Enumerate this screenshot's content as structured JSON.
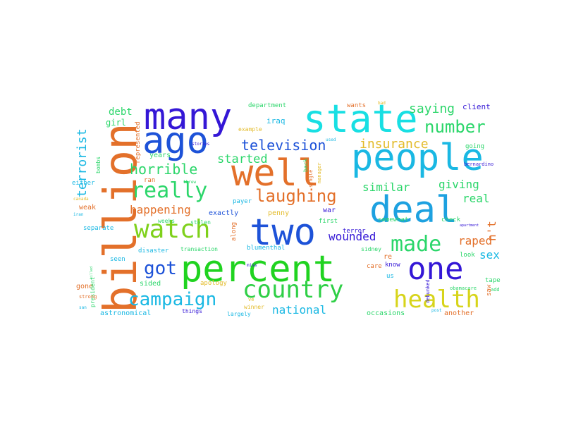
{
  "wordcloud": {
    "words": [
      {
        "id": "w01",
        "text": "billion",
        "color": "#e3702a"
      },
      {
        "id": "w02",
        "text": "many",
        "color": "#3417d6"
      },
      {
        "id": "w03",
        "text": "ago",
        "color": "#1d52d8"
      },
      {
        "id": "w04",
        "text": "state",
        "color": "#18dfe3"
      },
      {
        "id": "w05",
        "text": "well",
        "color": "#e3702a"
      },
      {
        "id": "w06",
        "text": "people",
        "color": "#1ab8e3"
      },
      {
        "id": "w07",
        "text": "two",
        "color": "#1d52d8"
      },
      {
        "id": "w08",
        "text": "deal",
        "color": "#1da1e0"
      },
      {
        "id": "w09",
        "text": "percent",
        "color": "#20d320"
      },
      {
        "id": "w10",
        "text": "one",
        "color": "#3417d6"
      },
      {
        "id": "w11",
        "text": "watch",
        "color": "#7fd11b"
      },
      {
        "id": "w12",
        "text": "country",
        "color": "#2fcf46"
      },
      {
        "id": "w13",
        "text": "health",
        "color": "#d7d41a"
      },
      {
        "id": "w14",
        "text": "campaign",
        "color": "#1ab8e3"
      },
      {
        "id": "w15",
        "text": "made",
        "color": "#2bd66a"
      },
      {
        "id": "w16",
        "text": "really",
        "color": "#2bd66a"
      },
      {
        "id": "w17",
        "text": "got",
        "color": "#1d52d8"
      },
      {
        "id": "w18",
        "text": "laughing",
        "color": "#e3702a"
      },
      {
        "id": "w19",
        "text": "number",
        "color": "#2bd66a"
      },
      {
        "id": "w20",
        "text": "horrible",
        "color": "#2bd66a"
      },
      {
        "id": "w21",
        "text": "television",
        "color": "#1d52d8"
      },
      {
        "id": "w22",
        "text": "started",
        "color": "#2bd66a"
      },
      {
        "id": "w23",
        "text": "terrorist",
        "color": "#1ab8e3"
      },
      {
        "id": "w24",
        "text": "insurance",
        "color": "#e3bb2a"
      },
      {
        "id": "w25",
        "text": "saying",
        "color": "#2bd66a"
      },
      {
        "id": "w26",
        "text": "happening",
        "color": "#e3702a"
      },
      {
        "id": "w27",
        "text": "similar",
        "color": "#2bd66a"
      },
      {
        "id": "w28",
        "text": "giving",
        "color": "#2bd66a"
      },
      {
        "id": "w29",
        "text": "real",
        "color": "#2bd66a"
      },
      {
        "id": "w30",
        "text": "wounded",
        "color": "#3417d6"
      },
      {
        "id": "w31",
        "text": "raped",
        "color": "#e3702a"
      },
      {
        "id": "w32",
        "text": "sex",
        "color": "#1ab8e3"
      },
      {
        "id": "w33",
        "text": "national",
        "color": "#1ab8e3"
      },
      {
        "id": "w34",
        "text": "n't",
        "color": "#e3702a"
      },
      {
        "id": "w35",
        "text": "debt",
        "color": "#2bd66a"
      },
      {
        "id": "w36",
        "text": "girl",
        "color": "#2bd66a"
      },
      {
        "id": "w37",
        "text": "years",
        "color": "#2bd66a"
      },
      {
        "id": "w38",
        "text": "weak",
        "color": "#e3702a"
      },
      {
        "id": "w39",
        "text": "exactly",
        "color": "#1d52d8"
      },
      {
        "id": "w40",
        "text": "penny",
        "color": "#e3bb2a"
      },
      {
        "id": "w41",
        "text": "iraq",
        "color": "#1ab8e3"
      },
      {
        "id": "w42",
        "text": "client",
        "color": "#3417d6"
      },
      {
        "id": "w43",
        "text": "department",
        "color": "#2bd66a"
      },
      {
        "id": "w44",
        "text": "wants",
        "color": "#e3702a"
      },
      {
        "id": "w45",
        "text": "bad",
        "color": "#e3bb2a"
      },
      {
        "id": "w46",
        "text": "example",
        "color": "#e3bb2a"
      },
      {
        "id": "w47",
        "text": "represented",
        "color": "#e3702a"
      },
      {
        "id": "w48",
        "text": "bombs",
        "color": "#2bd66a"
      },
      {
        "id": "w49",
        "text": "either",
        "color": "#1ab8e3"
      },
      {
        "id": "w50",
        "text": "ran",
        "color": "#e3702a"
      },
      {
        "id": "w51",
        "text": "payer",
        "color": "#1ab8e3"
      },
      {
        "id": "w52",
        "text": "somewhat",
        "color": "#2bd66a"
      },
      {
        "id": "w53",
        "text": "war",
        "color": "#3417d6"
      },
      {
        "id": "w54",
        "text": "first",
        "color": "#2bd66a"
      },
      {
        "id": "w55",
        "text": "terror",
        "color": "#3417d6"
      },
      {
        "id": "w56",
        "text": "check",
        "color": "#2bd66a"
      },
      {
        "id": "w57",
        "text": "going",
        "color": "#2bd66a"
      },
      {
        "id": "w58",
        "text": "bernardino",
        "color": "#3417d6"
      },
      {
        "id": "w59",
        "text": "weeks",
        "color": "#2bd66a"
      },
      {
        "id": "w60",
        "text": "stolen",
        "color": "#2bd66a"
      },
      {
        "id": "w61",
        "text": "separate",
        "color": "#1ab8e3"
      },
      {
        "id": "w62",
        "text": "disaster",
        "color": "#1ab8e3"
      },
      {
        "id": "w63",
        "text": "transaction",
        "color": "#2bd66a"
      },
      {
        "id": "w64",
        "text": "blumenthal",
        "color": "#1ab8e3"
      },
      {
        "id": "w65",
        "text": "sidney",
        "color": "#2bd66a"
      },
      {
        "id": "w66",
        "text": "seen",
        "color": "#1ab8e3"
      },
      {
        "id": "w67",
        "text": "care",
        "color": "#e3702a"
      },
      {
        "id": "w68",
        "text": "know",
        "color": "#3417d6"
      },
      {
        "id": "w69",
        "text": "look",
        "color": "#2bd66a"
      },
      {
        "id": "w70",
        "text": "us",
        "color": "#1ab8e3"
      },
      {
        "id": "w71",
        "text": "re",
        "color": "#e3702a"
      },
      {
        "id": "w72",
        "text": "sided",
        "color": "#2bd66a"
      },
      {
        "id": "w73",
        "text": "apology",
        "color": "#e3bb2a"
      },
      {
        "id": "w74",
        "text": "gone",
        "color": "#e3702a"
      },
      {
        "id": "w75",
        "text": "tape",
        "color": "#2bd66a"
      },
      {
        "id": "w76",
        "text": "add",
        "color": "#2bd66a"
      },
      {
        "id": "w77",
        "text": "saw",
        "color": "#e3702a"
      },
      {
        "id": "w78",
        "text": "obamacare",
        "color": "#2bd66a"
      },
      {
        "id": "w79",
        "text": "things",
        "color": "#3417d6"
      },
      {
        "id": "w80",
        "text": "winner",
        "color": "#e3bb2a"
      },
      {
        "id": "w81",
        "text": "largely",
        "color": "#1ab8e3"
      },
      {
        "id": "w82",
        "text": "astronomical",
        "color": "#1ab8e3"
      },
      {
        "id": "w83",
        "text": "occasions",
        "color": "#2bd66a"
      },
      {
        "id": "w84",
        "text": "another",
        "color": "#e3702a"
      },
      {
        "id": "w85",
        "text": "president",
        "color": "#2bd66a"
      },
      {
        "id": "w86",
        "text": "strong",
        "color": "#e3702a"
      },
      {
        "id": "w87",
        "text": "san",
        "color": "#1ab8e3"
      },
      {
        "id": "w88",
        "text": "canada",
        "color": "#e3bb2a"
      },
      {
        "id": "w89",
        "text": "iran",
        "color": "#1ab8e3"
      },
      {
        "id": "w90",
        "text": "killed",
        "color": "#2bd66a"
      },
      {
        "id": "w91",
        "text": "along",
        "color": "#e3702a"
      },
      {
        "id": "w92",
        "text": "miss",
        "color": "#3417d6"
      },
      {
        "id": "w93",
        "text": "single",
        "color": "#e3702a"
      },
      {
        "id": "w94",
        "text": "manager",
        "color": "#e3bb2a"
      },
      {
        "id": "w95",
        "text": "back",
        "color": "#2bd66a"
      },
      {
        "id": "w96",
        "text": "debunked",
        "color": "#3417d6"
      },
      {
        "id": "w97",
        "text": "apartment",
        "color": "#3417d6"
      },
      {
        "id": "w98",
        "text": "stories",
        "color": "#3417d6"
      },
      {
        "id": "w99",
        "text": "threw",
        "color": "#2bd66a"
      },
      {
        "id": "w100",
        "text": "used",
        "color": "#1ab8e3"
      },
      {
        "id": "w101",
        "text": "ve",
        "color": "#e3bb2a"
      },
      {
        "id": "w102",
        "text": "post",
        "color": "#1ab8e3"
      }
    ]
  }
}
